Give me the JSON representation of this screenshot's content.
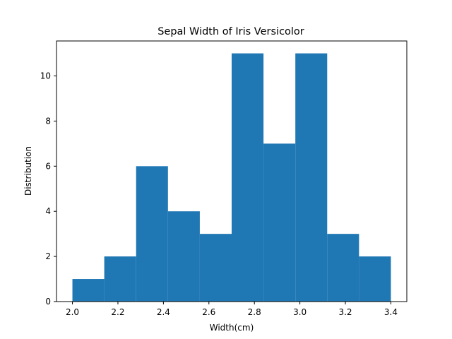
{
  "chart_data": {
    "type": "bar",
    "title": "Sepal Width of Iris Versicolor",
    "xlabel": "Width(cm)",
    "ylabel": "Distribution",
    "bins": [
      {
        "start": 2.0,
        "end": 2.14,
        "count": 1
      },
      {
        "start": 2.14,
        "end": 2.28,
        "count": 2
      },
      {
        "start": 2.28,
        "end": 2.42,
        "count": 6
      },
      {
        "start": 2.42,
        "end": 2.56,
        "count": 4
      },
      {
        "start": 2.56,
        "end": 2.7,
        "count": 3
      },
      {
        "start": 2.7,
        "end": 2.84,
        "count": 11
      },
      {
        "start": 2.84,
        "end": 2.98,
        "count": 7
      },
      {
        "start": 2.98,
        "end": 3.12,
        "count": 11
      },
      {
        "start": 3.12,
        "end": 3.26,
        "count": 3
      },
      {
        "start": 3.26,
        "end": 3.4,
        "count": 2
      }
    ],
    "xlim": [
      1.93,
      3.47
    ],
    "ylim": [
      0,
      11.55
    ],
    "xticks": [
      "2.0",
      "2.2",
      "2.4",
      "2.6",
      "2.8",
      "3.0",
      "3.2",
      "3.4"
    ],
    "yticks": [
      "0",
      "2",
      "4",
      "6",
      "8",
      "10"
    ],
    "bar_color": "#1f77b4",
    "grid": false
  }
}
